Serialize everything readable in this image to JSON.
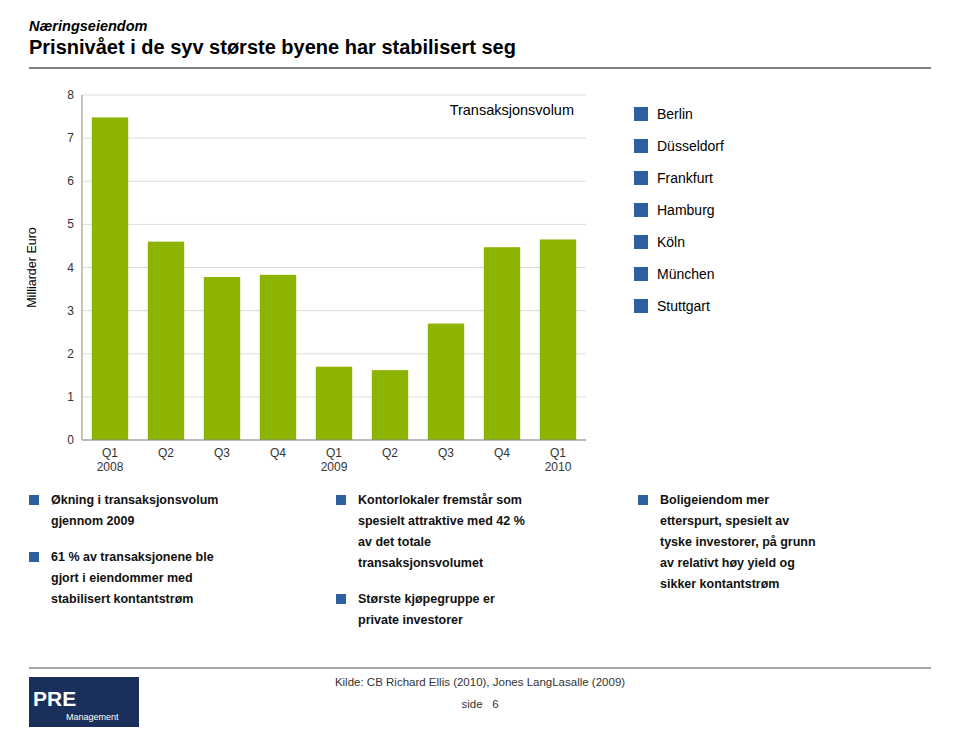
{
  "chart_data": {
    "type": "bar",
    "title": "Transaksjonsvolum",
    "categories": [
      "Q1\n2008",
      "Q2",
      "Q3",
      "Q4",
      "Q1\n2009",
      "Q2",
      "Q3",
      "Q4",
      "Q1\n2010"
    ],
    "values": [
      7.48,
      4.6,
      3.78,
      3.83,
      1.7,
      1.62,
      2.7,
      4.47,
      4.65
    ],
    "color": "#8cb400",
    "ylabel": "Milliarder Euro",
    "ylim": [
      0,
      8
    ],
    "yticks": [
      0,
      1,
      2,
      3,
      4,
      5,
      6,
      7,
      8
    ],
    "grid": true
  },
  "page": {
    "kicker": "Næringseiendom",
    "heading": "Prisnivået i de syv største byene har stabilisert seg",
    "city_list": [
      "Berlin",
      "Düsseldorf",
      "Frankfurt",
      "Hamburg",
      "Köln",
      "München",
      "Stuttgart"
    ],
    "city_color": "#2e5fa3",
    "bullet_color": "#2e5fa3",
    "bullets": [
      [
        "Økning i transaksjonsvolum\ngjennom 2009",
        "61 % av transaksjonene ble\ngjort i eiendommer med\nstabilisert kontantstrøm"
      ],
      [
        "Kontorlokaler fremstår som\nspesielt attraktive med 42 %\nav det totale\ntransaksjonsvolumet",
        "Største kjøpegruppe er\nprivate investorer"
      ],
      [
        "Boligeiendom mer\netterspurt, spesielt av\ntyske investorer, på grunn\nav relativt høy yield og\nsikker kontantstrøm"
      ]
    ],
    "footer": [
      "Kilde: CB Richard Ellis (2010), Jones LangLasalle (2009)",
      "side   6"
    ],
    "logo_text": [
      "PRE",
      "Management"
    ],
    "logo_color": "#1a2f5a"
  }
}
